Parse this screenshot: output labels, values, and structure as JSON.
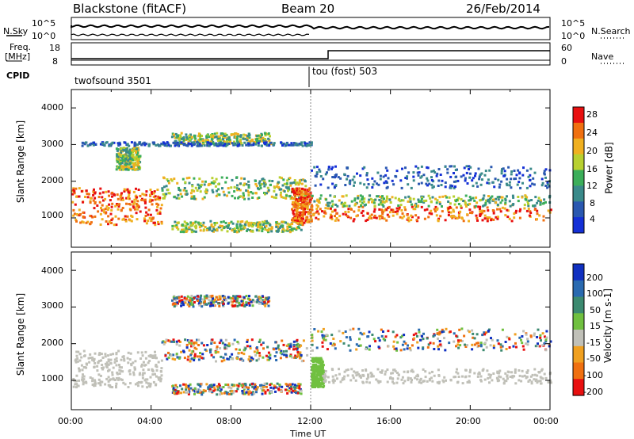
{
  "header": {
    "station": "Blackstone (fitACF)",
    "beam": "Beam 20",
    "date": "26/Feb/2014"
  },
  "strip": {
    "nsky_label": "N.Sky",
    "nsky_ticks": [
      "10^5",
      "10^0"
    ],
    "nsearch_label": "N.Search",
    "nsearch_ticks": [
      "10^5",
      "10^0"
    ],
    "freq_label": "Freq.",
    "freq_unit": "[MHz]",
    "freq_ticks": [
      "18",
      "8"
    ],
    "nave_label": "Nave",
    "nave_ticks": [
      "60",
      "0"
    ],
    "cpid_label": "CPID",
    "cpid_segments": [
      "twofsound 3501",
      "tou (fost) 503"
    ]
  },
  "chart_data": [
    {
      "type": "heatmap",
      "name": "power",
      "ylabel": "Slant Range [km]",
      "ylim": [
        200,
        4500
      ],
      "yticks": [
        "1000",
        "2000",
        "3000",
        "4000"
      ],
      "xlim": [
        "00:00",
        "24:00"
      ],
      "colorbar": {
        "label": "Power [dB]",
        "ticks": [
          "4",
          "8",
          "12",
          "16",
          "20",
          "24",
          "28"
        ],
        "colors": [
          "#1430d6",
          "#2a58b0",
          "#3a8a8a",
          "#3cae5a",
          "#b8d030",
          "#f0b020",
          "#f07010",
          "#e81010"
        ]
      },
      "echo_regions": [
        {
          "t": [
            0.0,
            4.5
          ],
          "range": [
            800,
            1800
          ],
          "level": "high"
        },
        {
          "t": [
            4.5,
            11.8
          ],
          "range": [
            1500,
            2100
          ],
          "level": "mid"
        },
        {
          "t": [
            5.0,
            11.5
          ],
          "range": [
            600,
            900
          ],
          "level": "mid"
        },
        {
          "t": [
            5.0,
            10.0
          ],
          "range": [
            3000,
            3300
          ],
          "level": "mid"
        },
        {
          "t": [
            2.2,
            3.4
          ],
          "range": [
            2300,
            2900
          ],
          "level": "mid"
        },
        {
          "t": [
            0.5,
            12.0
          ],
          "range": [
            2950,
            3050
          ],
          "level": "low"
        },
        {
          "t": [
            11.0,
            12.0
          ],
          "range": [
            800,
            1800
          ],
          "level": "high"
        },
        {
          "t": [
            12.0,
            24.0
          ],
          "range": [
            900,
            1300
          ],
          "level": "high"
        },
        {
          "t": [
            12.0,
            24.0
          ],
          "range": [
            1300,
            1600
          ],
          "level": "mid"
        },
        {
          "t": [
            12.0,
            24.0
          ],
          "range": [
            1800,
            2400
          ],
          "level": "low"
        }
      ]
    },
    {
      "type": "heatmap",
      "name": "velocity",
      "ylabel": "Slant Range [km]",
      "xlabel": "Time UT",
      "ylim": [
        200,
        4500
      ],
      "yticks": [
        "1000",
        "2000",
        "3000",
        "4000"
      ],
      "xticks": [
        "00:00",
        "04:00",
        "08:00",
        "12:00",
        "16:00",
        "20:00",
        "00:00"
      ],
      "colorbar": {
        "label": "Velocity [m s-1]",
        "ticks": [
          "200",
          "100",
          "50",
          "15",
          "-15",
          "-50",
          "-100",
          "-200"
        ],
        "colors": [
          "#1030c0",
          "#2a6ab0",
          "#3c8a70",
          "#70c040",
          "#c0c0b8",
          "#f0a020",
          "#f07010",
          "#e81010"
        ]
      },
      "echo_regions": [
        {
          "t": [
            0.0,
            4.5
          ],
          "range": [
            800,
            1800
          ],
          "level": "ground"
        },
        {
          "t": [
            4.5,
            11.8
          ],
          "range": [
            1500,
            2100
          ],
          "level": "mixed"
        },
        {
          "t": [
            5.0,
            11.5
          ],
          "range": [
            600,
            900
          ],
          "level": "mixed"
        },
        {
          "t": [
            5.0,
            10.0
          ],
          "range": [
            3000,
            3300
          ],
          "level": "mixed"
        },
        {
          "t": [
            12.0,
            12.6
          ],
          "range": [
            800,
            1600
          ],
          "level": "positive"
        },
        {
          "t": [
            12.5,
            24.0
          ],
          "range": [
            900,
            1300
          ],
          "level": "ground"
        },
        {
          "t": [
            12.0,
            24.0
          ],
          "range": [
            1800,
            2400
          ],
          "level": "mixed"
        }
      ]
    }
  ]
}
